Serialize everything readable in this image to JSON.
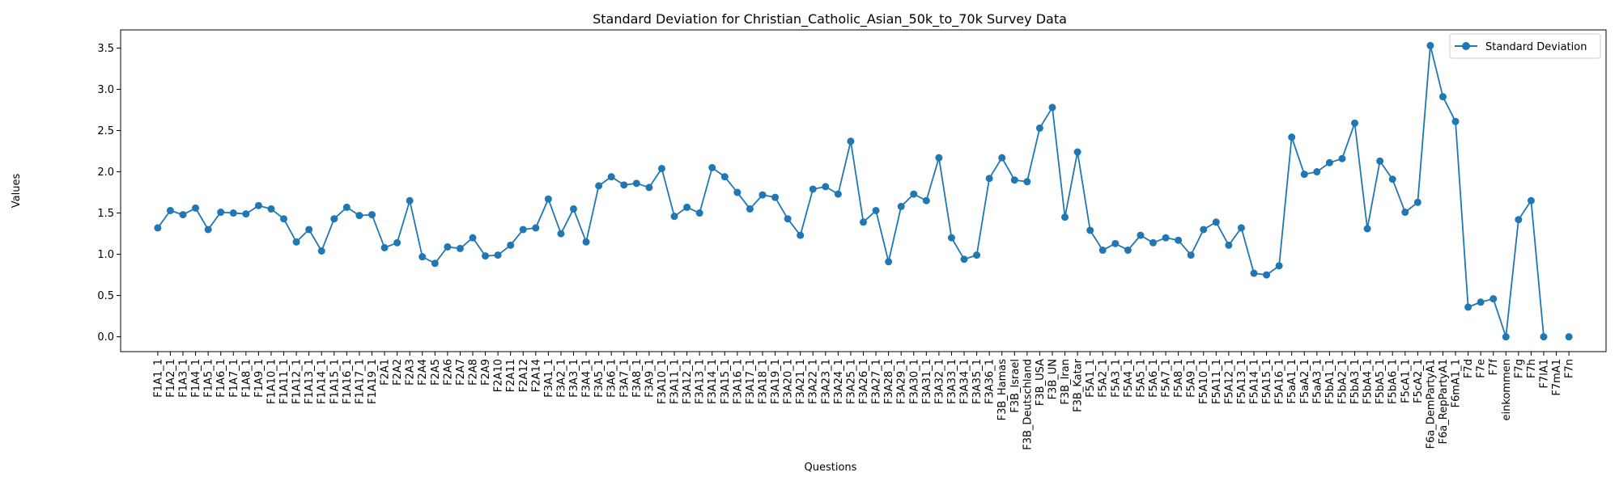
{
  "chart_data": {
    "type": "line",
    "title": "Standard Deviation for Christian_Catholic_Asian_50k_to_70k Survey Data",
    "xlabel": "Questions",
    "ylabel": "Values",
    "ylim": [
      -0.18,
      3.72
    ],
    "yticks": [
      0.0,
      0.5,
      1.0,
      1.5,
      2.0,
      2.5,
      3.0,
      3.5
    ],
    "ytick_labels": [
      "0.0",
      "0.5",
      "1.0",
      "1.5",
      "2.0",
      "2.5",
      "3.0",
      "3.5"
    ],
    "grid": false,
    "legend_position": "top-right",
    "color": "#1f77b4",
    "categories": [
      "F1A1_1",
      "F1A2_1",
      "F1A3_1",
      "F1A4_1",
      "F1A5_1",
      "F1A6_1",
      "F1A7_1",
      "F1A8_1",
      "F1A9_1",
      "F1A10_1",
      "F1A11_1",
      "F1A12_1",
      "F1A13_1",
      "F1A14_1",
      "F1A15_1",
      "F1A16_1",
      "F1A17_1",
      "F1A19_1",
      "F2A1",
      "F2A2",
      "F2A3",
      "F2A4",
      "F2A5",
      "F2A6",
      "F2A7",
      "F2A8",
      "F2A9",
      "F2A10",
      "F2A11",
      "F2A12",
      "F2A14",
      "F3A1_1",
      "F3A2_1",
      "F3A3_1",
      "F3A4_1",
      "F3A5_1",
      "F3A6_1",
      "F3A7_1",
      "F3A8_1",
      "F3A9_1",
      "F3A10_1",
      "F3A11_1",
      "F3A12_1",
      "F3A13_1",
      "F3A14_1",
      "F3A15_1",
      "F3A16_1",
      "F3A17_1",
      "F3A18_1",
      "F3A19_1",
      "F3A20_1",
      "F3A21_1",
      "F3A22_1",
      "F3A23_1",
      "F3A24_1",
      "F3A25_1",
      "F3A26_1",
      "F3A27_1",
      "F3A28_1",
      "F3A29_1",
      "F3A30_1",
      "F3A31_1",
      "F3A32_1",
      "F3A33_1",
      "F3A34_1",
      "F3A35_1",
      "F3A36_1",
      "F3B_Hamas",
      "F3B_Israel",
      "F3B_Deutschland",
      "F3B_USA",
      "F3B_UN",
      "F3B_Iran",
      "F3B_Katar",
      "F5A1_1",
      "F5A2_1",
      "F5A3_1",
      "F5A4_1",
      "F5A5_1",
      "F5A6_1",
      "F5A7_1",
      "F5A8_1",
      "F5A9_1",
      "F5A10_1",
      "F5A11_1",
      "F5A12_1",
      "F5A13_1",
      "F5A14_1",
      "F5A15_1",
      "F5A16_1",
      "F5aA1_1",
      "F5aA2_1",
      "F5aA3_1",
      "F5bA1_1",
      "F5bA2_1",
      "F5bA3_1",
      "F5bA4_1",
      "F5bA5_1",
      "F5bA6_1",
      "F5cA1_1",
      "F5cA2_1",
      "F6a_DemPartyA1",
      "F6a_RepPartyA1",
      "F6mA1_1",
      "F7d",
      "F7e",
      "F7f",
      "einkommen",
      "F7g",
      "F7h",
      "F7lA1",
      "F7mA1",
      "F7n"
    ],
    "series": [
      {
        "name": "Standard Deviation",
        "values": [
          1.32,
          1.53,
          1.48,
          1.56,
          1.3,
          1.51,
          1.5,
          1.49,
          1.59,
          1.55,
          1.43,
          1.15,
          1.3,
          1.04,
          1.43,
          1.57,
          1.47,
          1.48,
          1.08,
          1.14,
          1.65,
          0.97,
          0.89,
          1.09,
          1.07,
          1.2,
          0.98,
          0.99,
          1.11,
          1.3,
          1.32,
          1.67,
          1.25,
          1.55,
          1.15,
          1.83,
          1.94,
          1.84,
          1.86,
          1.81,
          2.04,
          1.46,
          1.57,
          1.5,
          2.05,
          1.94,
          1.75,
          1.55,
          1.72,
          1.69,
          1.43,
          1.23,
          1.79,
          1.82,
          1.73,
          2.37,
          1.39,
          1.53,
          0.91,
          1.58,
          1.73,
          1.65,
          2.17,
          1.2,
          0.94,
          0.99,
          1.92,
          2.17,
          1.9,
          1.88,
          2.53,
          2.78,
          1.45,
          2.24,
          1.29,
          1.05,
          1.13,
          1.05,
          1.23,
          1.14,
          1.2,
          1.17,
          0.99,
          1.3,
          1.39,
          1.11,
          1.32,
          0.77,
          0.75,
          0.86,
          2.42,
          1.97,
          2.0,
          2.11,
          2.16,
          2.59,
          1.31,
          2.13,
          1.91,
          1.51,
          1.63,
          3.53,
          2.91,
          2.61,
          0.36,
          0.42,
          0.46,
          0.0,
          1.42,
          1.65,
          0.0,
          null,
          0.0
        ]
      }
    ]
  }
}
